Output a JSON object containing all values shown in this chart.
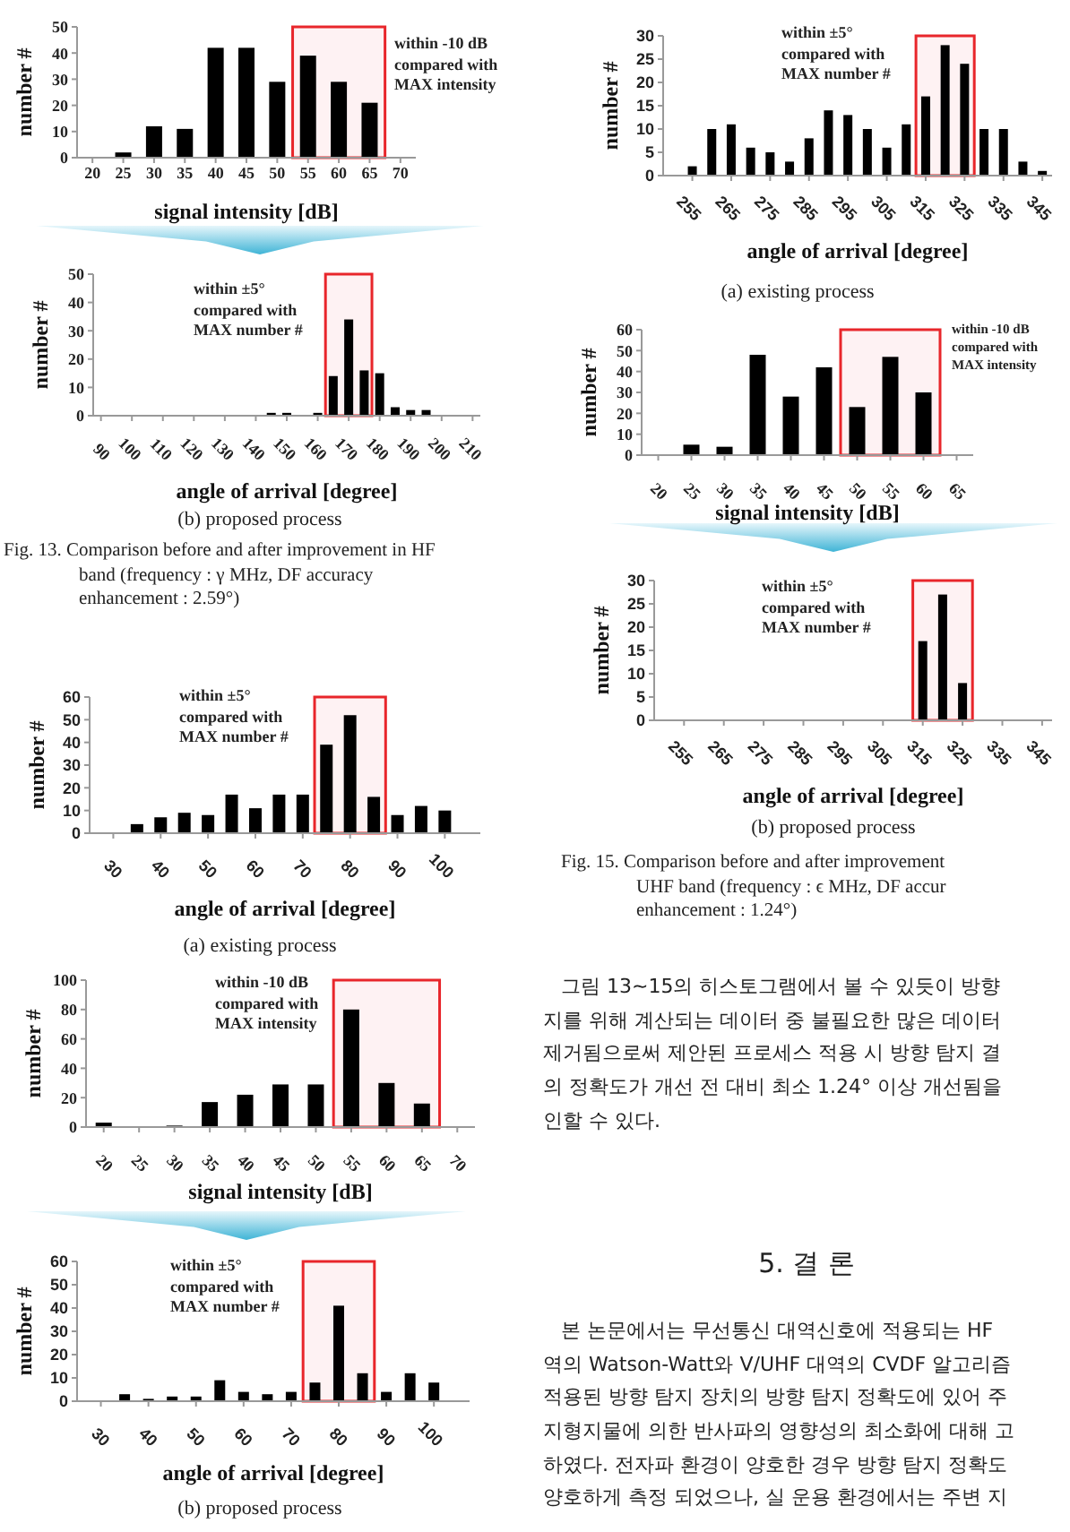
{
  "chart_data": [
    {
      "type": "bar",
      "xlabel": "signal intensity [dB]",
      "ylabel": "number #",
      "color": "#000000",
      "x": [
        25,
        30,
        35,
        40,
        45,
        50,
        55,
        60,
        65
      ],
      "values": [
        2,
        12,
        11,
        42,
        42,
        29,
        39,
        29,
        21
      ],
      "xlim": [
        17.5,
        72.5
      ],
      "xticks": [
        20,
        25,
        30,
        35,
        40,
        45,
        50,
        55,
        60,
        65,
        70
      ],
      "ylim": [
        0,
        50
      ],
      "yticks": [
        0,
        10,
        20,
        30,
        40,
        50
      ],
      "bands": [
        {
          "axis": "x",
          "from": 52.5,
          "to": 67.5,
          "color": "#e8262b"
        }
      ],
      "annotations": [
        "within  -10 dB\ncompared  with\nMAX intensity"
      ]
    },
    {
      "type": "bar",
      "xlabel": "angle of arrival [degree]",
      "ylabel": "number #",
      "color": "#000000",
      "x": [
        145,
        150,
        160,
        165,
        170,
        175,
        180,
        185,
        190,
        195
      ],
      "values": [
        1,
        1,
        1,
        14,
        34,
        16,
        15,
        3,
        2,
        2
      ],
      "xlim": [
        87.5,
        212.5
      ],
      "xticks": [
        90,
        100,
        110,
        120,
        130,
        140,
        150,
        160,
        170,
        180,
        190,
        200,
        210
      ],
      "ylim": [
        0,
        50
      ],
      "yticks": [
        0,
        10,
        20,
        30,
        40,
        50
      ],
      "bands": [
        {
          "axis": "x",
          "from": 162.5,
          "to": 177.5,
          "color": "#e8262b"
        }
      ],
      "annotations": [
        "within  ±5°\ncompared  with\nMAX number  #",
        "(b)  proposed  process",
        "Fig. 13. Comparison before and after improvement in HF\nband (frequency : γ MHz, DF accuracy\nenhancement : 2.59°)"
      ]
    },
    {
      "type": "bar",
      "xlabel": "angle of arrival [degree]",
      "ylabel": "number #",
      "color": "#000000",
      "x": [
        35,
        40,
        45,
        50,
        55,
        60,
        65,
        70,
        75,
        80,
        85,
        90,
        95,
        100
      ],
      "values": [
        4,
        7,
        9,
        8,
        17,
        11,
        17,
        17,
        39,
        52,
        16,
        8,
        12,
        10
      ],
      "xlim": [
        25,
        107.5
      ],
      "xticks": [
        30,
        40,
        50,
        60,
        70,
        80,
        90,
        100
      ],
      "ylim": [
        0,
        60
      ],
      "yticks": [
        0,
        10,
        20,
        30,
        40,
        50,
        60
      ],
      "bands": [
        {
          "axis": "x",
          "from": 72.5,
          "to": 87.5,
          "color": "#e8262b"
        }
      ],
      "annotations": [
        "within  ±5°\ncompared  with\nMAX number  #",
        "(a)  existing  process"
      ]
    },
    {
      "type": "bar",
      "xlabel": "signal intensity [dB]",
      "ylabel": "number #",
      "color": "#000000",
      "x": [
        20,
        30,
        35,
        40,
        45,
        50,
        55,
        60,
        65
      ],
      "values": [
        3,
        1,
        17,
        22,
        29,
        29,
        80,
        30,
        16
      ],
      "xlim": [
        17.5,
        72.5
      ],
      "xticks": [
        20,
        25,
        30,
        35,
        40,
        45,
        50,
        55,
        60,
        65,
        70
      ],
      "ylim": [
        0,
        100
      ],
      "yticks": [
        0,
        20,
        40,
        60,
        80,
        100
      ],
      "bands": [
        {
          "axis": "x",
          "from": 52.5,
          "to": 67.5,
          "color": "#e8262b"
        }
      ],
      "annotations": [
        "within  -10 dB\ncompared  with\nMAX intensity"
      ]
    },
    {
      "type": "bar",
      "xlabel": "angle of arrival [degree]",
      "ylabel": "number #",
      "color": "#000000",
      "x": [
        35,
        40,
        45,
        50,
        55,
        60,
        65,
        70,
        75,
        80,
        85,
        90,
        95,
        100
      ],
      "values": [
        3,
        1,
        2,
        2,
        9,
        4,
        3,
        4,
        8,
        41,
        12,
        4,
        12,
        8
      ],
      "xlim": [
        25,
        107.5
      ],
      "xticks": [
        30,
        40,
        50,
        60,
        70,
        80,
        90,
        100
      ],
      "ylim": [
        0,
        60
      ],
      "yticks": [
        0,
        10,
        20,
        30,
        40,
        50,
        60
      ],
      "bands": [
        {
          "axis": "x",
          "from": 72.5,
          "to": 87.5,
          "color": "#e8262b"
        }
      ],
      "annotations": [
        "within  ±5°\ncompared  with\nMAX number  #",
        "(b)  proposed  process"
      ]
    },
    {
      "type": "bar",
      "xlabel": "angle of arrival [degree]",
      "ylabel": "number #",
      "color": "#000000",
      "x": [
        255,
        260,
        265,
        270,
        275,
        280,
        285,
        290,
        295,
        300,
        305,
        310,
        315,
        320,
        325,
        330,
        335,
        340,
        345
      ],
      "values": [
        2,
        10,
        11,
        6,
        5,
        3,
        8,
        14,
        13,
        10,
        6,
        11,
        17,
        28,
        24,
        10,
        10,
        3,
        1
      ],
      "xlim": [
        247.5,
        347.5
      ],
      "xticks": [
        255,
        265,
        275,
        285,
        295,
        305,
        315,
        325,
        335,
        345
      ],
      "ylim": [
        0,
        30
      ],
      "yticks": [
        0,
        5,
        10,
        15,
        20,
        25,
        30
      ],
      "bands": [
        {
          "axis": "x",
          "from": 312.5,
          "to": 327.5,
          "color": "#e8262b"
        }
      ],
      "annotations": [
        "within  ±5°\ncompared  with\nMAX number  #",
        "(a)  existing  process"
      ]
    },
    {
      "type": "bar",
      "xlabel": "signal intensity [dB]",
      "ylabel": "number #",
      "color": "#000000",
      "x": [
        25,
        30,
        35,
        40,
        45,
        50,
        55,
        60
      ],
      "values": [
        5,
        4,
        48,
        28,
        42,
        23,
        47,
        30
      ],
      "xlim": [
        17.5,
        67.5
      ],
      "xticks": [
        20,
        25,
        30,
        35,
        40,
        45,
        50,
        55,
        60,
        65
      ],
      "ylim": [
        0,
        60
      ],
      "yticks": [
        0,
        10,
        20,
        30,
        40,
        50,
        60
      ],
      "bands": [
        {
          "axis": "x",
          "from": 47.5,
          "to": 62.5,
          "color": "#e8262b"
        }
      ],
      "annotations": [
        "within  -10 dB\ncompared  with\nMAX intensity"
      ]
    },
    {
      "type": "bar",
      "xlabel": "angle of arrival [degree]",
      "ylabel": "number #",
      "color": "#000000",
      "x": [
        315,
        320,
        325
      ],
      "values": [
        17,
        27,
        8
      ],
      "xlim": [
        247.5,
        347.5
      ],
      "xticks": [
        255,
        265,
        275,
        285,
        295,
        305,
        315,
        325,
        335,
        345
      ],
      "ylim": [
        0,
        30
      ],
      "yticks": [
        0,
        5,
        10,
        15,
        20,
        25,
        30
      ],
      "bands": [
        {
          "axis": "x",
          "from": 312.5,
          "to": 327.5,
          "color": "#e8262b"
        }
      ],
      "annotations": [
        "within  ±5°\ncompared  with\nMAX number  #",
        "(b)  proposed  process",
        "Fig. 15. Comparison before and after improvement\nUHF band (frequency : ϵ MHz, DF accur\nenhancement : 1.24°)",
        "그림 13∼15의 히스토그램에서 볼 수 있듯이 방향\n지를 위해 계산되는 데이터 중 불필요한 많은 데이터\n제거됨으로써 제안된 프로세스 적용 시 방향 탐지 결\n의 정확도가 개선 전 대비 최소 1.24° 이상 개선됨을\n인할 수 있다.",
        "5. 결 론",
        "본 논문에서는 무선통신 대역신호에 적용되는 HF\n역의 Watson-Watt와 V/UHF 대역의 CVDF 알고리즘\n적용된 방향 탐지 장치의 방향 탐지 정확도에 있어 주\n지형지물에 의한 반사파의 영향성의 최소화에 대해 고\n하였다. 전자파 환경이 양호한 경우 방향 탐지 정확도\n양호하게 측정 되었으나, 실 운용 환경에서는 주변 지"
      ]
    }
  ]
}
